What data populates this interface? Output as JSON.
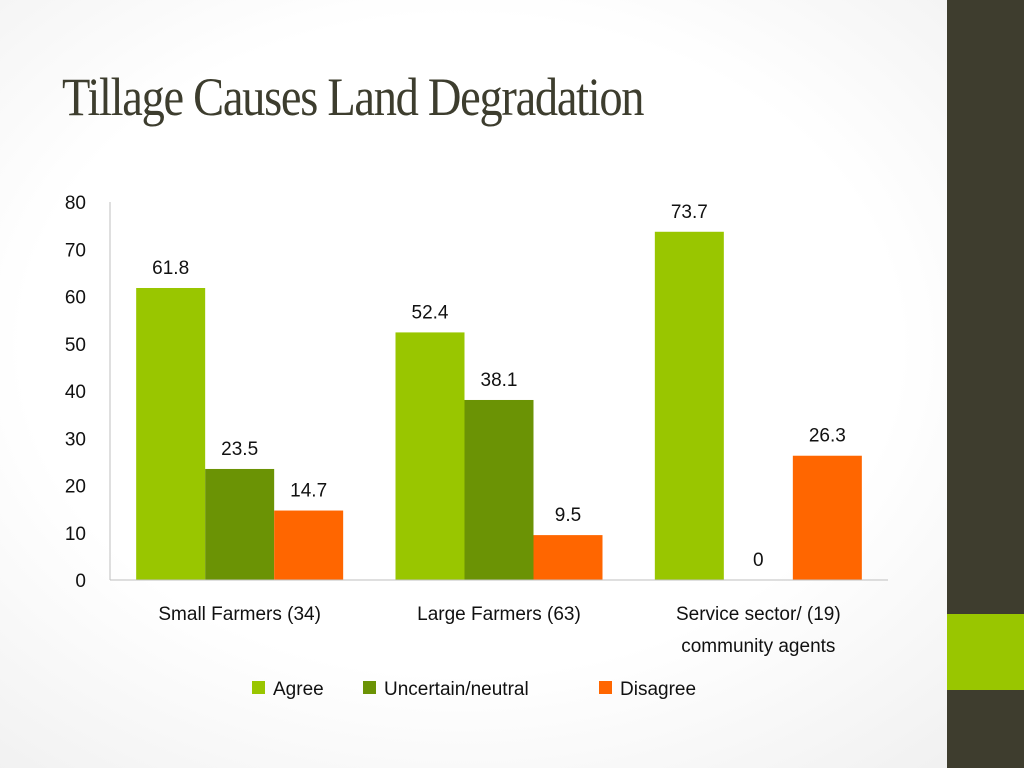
{
  "slide": {
    "title": "Tillage Causes Land Degradation"
  },
  "colors": {
    "agree": "#99c600",
    "uncertain": "#6b9305",
    "disagree": "#ff6600",
    "sidebar": "#3e3d2e",
    "sidebar_accent": "#99c600",
    "title": "#3d3d2e"
  },
  "chart_data": {
    "type": "bar",
    "title": "",
    "xlabel": "",
    "ylabel": "",
    "ylim": [
      0,
      80
    ],
    "yticks": [
      0,
      10,
      20,
      30,
      40,
      50,
      60,
      70,
      80
    ],
    "grid": false,
    "legend_position": "bottom",
    "categories": [
      [
        "Small Farmers (34)"
      ],
      [
        "Large Farmers (63)"
      ],
      [
        "Service sector/ (19)",
        "community agents"
      ]
    ],
    "series": [
      {
        "name": "Agree",
        "color": "#99c600",
        "values": [
          61.8,
          52.4,
          73.7
        ]
      },
      {
        "name": "Uncertain/neutral",
        "color": "#6b9305",
        "values": [
          23.5,
          38.1,
          0
        ]
      },
      {
        "name": "Disagree",
        "color": "#ff6600",
        "values": [
          14.7,
          9.5,
          26.3
        ]
      }
    ]
  }
}
